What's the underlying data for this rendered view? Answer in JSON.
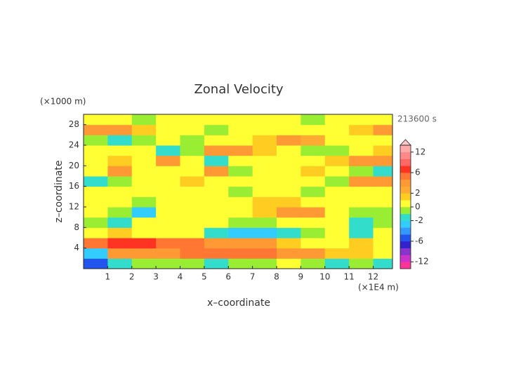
{
  "chart_data": {
    "type": "contour",
    "title": "Zonal Velocity",
    "y_unit": "(×1000 m)",
    "x_unit": "(×1E4 m)",
    "time_label": "213600 s",
    "x_label": "x–coordinate",
    "y_label": "z–coordinate",
    "xlim": [
      0,
      12.8
    ],
    "ylim": [
      0,
      30
    ],
    "xticks": [
      1,
      2,
      3,
      4,
      5,
      6,
      7,
      8,
      9,
      10,
      11,
      12
    ],
    "yticks": [
      4,
      8,
      12,
      16,
      20,
      24,
      28
    ],
    "x": [
      0.5,
      1.5,
      2.5,
      3.5,
      4.5,
      5.5,
      6.5,
      7.5,
      8.5,
      9.5,
      10.5,
      11.5,
      12.5
    ],
    "z": [
      1,
      3,
      5,
      7,
      9,
      11,
      13,
      15,
      17,
      19,
      21,
      23,
      25,
      27,
      29
    ],
    "values": [
      [
        -5,
        -1.5,
        -0.5,
        -0.5,
        -0.5,
        -1.5,
        -0.5,
        -0.5,
        0.5,
        -0.5,
        -1.5,
        -0.5,
        -1.5
      ],
      [
        -3,
        3,
        3,
        3,
        5,
        5,
        5,
        5,
        3,
        3,
        1,
        1,
        0.5
      ],
      [
        5,
        7,
        7,
        5,
        5,
        3,
        3,
        3,
        1.5,
        0.5,
        0.5,
        1,
        0.5
      ],
      [
        0.5,
        1.5,
        0.5,
        0.5,
        0.5,
        -1.5,
        -2.5,
        -2.5,
        -1.5,
        -0.5,
        0.5,
        -1.5,
        0.5
      ],
      [
        -0.5,
        -1.5,
        0.5,
        0.5,
        0.5,
        0.5,
        -0.5,
        -0.5,
        0.5,
        0.5,
        0.5,
        -1.5,
        -0.5
      ],
      [
        0.5,
        -0.5,
        -2.5,
        0.5,
        0.5,
        0.5,
        0.5,
        1,
        3,
        3,
        0.5,
        -0.5,
        -0.5
      ],
      [
        0.5,
        0.5,
        -0.5,
        0.5,
        0.5,
        0.5,
        0.5,
        1,
        1,
        0.5,
        0.5,
        0.5,
        0.5
      ],
      [
        0.5,
        0.5,
        0.5,
        0.5,
        0.5,
        0.5,
        -0.5,
        0.5,
        0.5,
        -0.5,
        0.5,
        0.5,
        0.5
      ],
      [
        -1.5,
        -0.5,
        0.5,
        0.5,
        1,
        0.5,
        0.5,
        0.5,
        0.5,
        0.5,
        -0.5,
        3,
        3
      ],
      [
        0.5,
        3,
        0.5,
        0.5,
        0.5,
        3,
        -0.5,
        0.5,
        0.5,
        1,
        0.5,
        -0.5,
        -1.5
      ],
      [
        0.5,
        1,
        0.5,
        3,
        0.5,
        -1.5,
        0.5,
        0.5,
        0.5,
        0.5,
        1.5,
        3,
        3
      ],
      [
        0.5,
        0.5,
        0.5,
        -1.5,
        -0.5,
        3,
        3,
        1,
        0.5,
        -0.5,
        -0.5,
        0.5,
        1
      ],
      [
        -0.5,
        -1.5,
        -0.5,
        0.5,
        -0.5,
        0.5,
        0.5,
        1.5,
        3,
        2,
        0.5,
        0.5,
        0.5
      ],
      [
        3,
        3,
        1,
        0.5,
        0.5,
        -0.5,
        0.5,
        0.5,
        0.5,
        0.5,
        0.5,
        1,
        3
      ],
      [
        0.5,
        0.5,
        -0.5,
        0.5,
        0.5,
        0.5,
        0.5,
        0.5,
        0.5,
        -0.5,
        0.5,
        0.5,
        0.5
      ]
    ],
    "colorbar": {
      "levels": [
        -14,
        -12,
        -10,
        -8,
        -6,
        -4,
        -3,
        -2,
        -1,
        0,
        1,
        2,
        3,
        4,
        6,
        8,
        10,
        12,
        14
      ],
      "colors": [
        "#ff3399",
        "#cc33cc",
        "#8833cc",
        "#3322cc",
        "#2255ee",
        "#3399ff",
        "#33ccff",
        "#33ddcc",
        "#99ee33",
        "#ffff33",
        "#ffcc22",
        "#ffaa33",
        "#ff9933",
        "#ff7733",
        "#ff3322",
        "#ff6666",
        "#ff8888",
        "#ffaaaa"
      ],
      "over_color": "#ffc8c8",
      "ticks": [
        12,
        6,
        2,
        0,
        -2,
        -6,
        -12
      ]
    }
  }
}
